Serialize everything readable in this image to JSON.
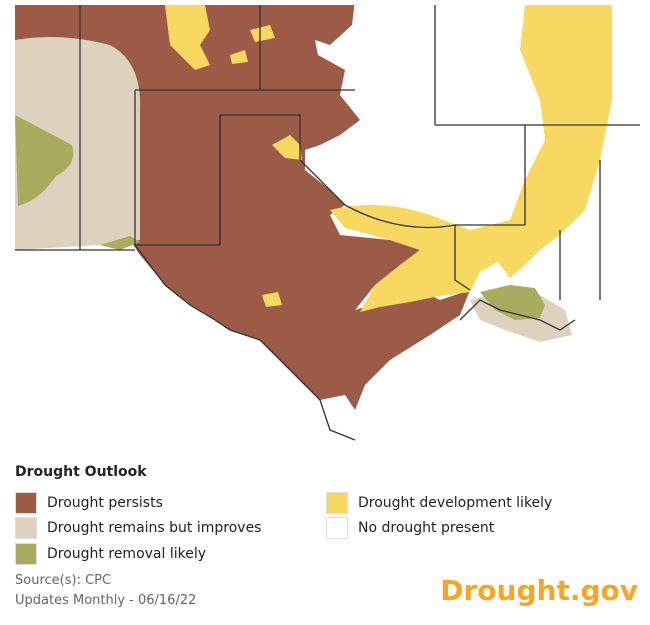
{
  "legend": {
    "title": "Drought Outlook",
    "items": [
      "Drought persists",
      "Drought remains but improves",
      "Drought removal likely",
      "Drought development likely",
      "No drought present"
    ]
  },
  "source": "Source(s): CPC",
  "updates": "Updates Monthly - 06/16/22",
  "logo": "Drought.gov"
}
